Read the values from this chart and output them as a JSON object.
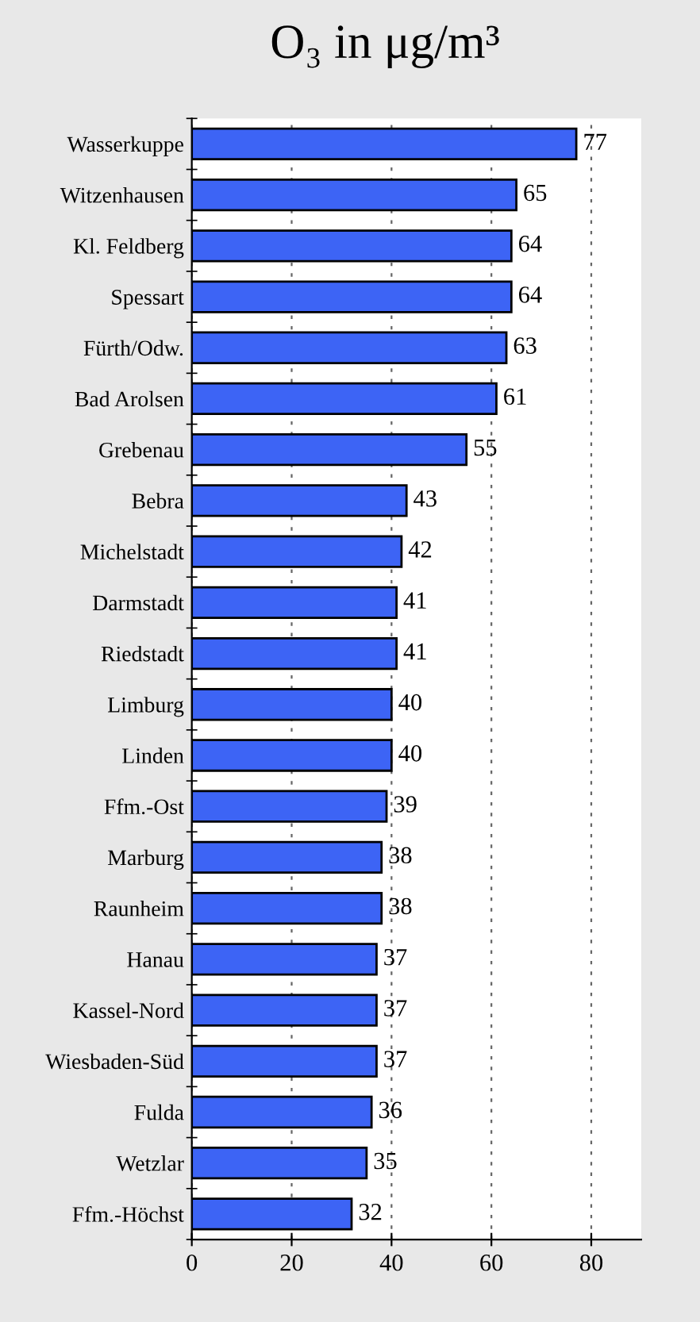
{
  "chart_data": {
    "type": "bar",
    "orientation": "horizontal",
    "title": "O₃ in μg/m³",
    "categories": [
      "Wasserkuppe",
      "Witzenhausen",
      "Kl. Feldberg",
      "Spessart",
      "Fürth/Odw.",
      "Bad Arolsen",
      "Grebenau",
      "Bebra",
      "Michelstadt",
      "Darmstadt",
      "Riedstadt",
      "Limburg",
      "Linden",
      "Ffm.-Ost",
      "Marburg",
      "Raunheim",
      "Hanau",
      "Kassel-Nord",
      "Wiesbaden-Süd",
      "Fulda",
      "Wetzlar",
      "Ffm.-Höchst"
    ],
    "values": [
      77,
      65,
      64,
      64,
      63,
      61,
      55,
      43,
      42,
      41,
      41,
      40,
      40,
      39,
      38,
      38,
      37,
      37,
      37,
      36,
      35,
      32
    ],
    "color": "#3d64f5",
    "xlim": [
      0,
      90
    ],
    "xticks": [
      0,
      20,
      40,
      60,
      80
    ],
    "grid": "x",
    "data_labels": true
  }
}
